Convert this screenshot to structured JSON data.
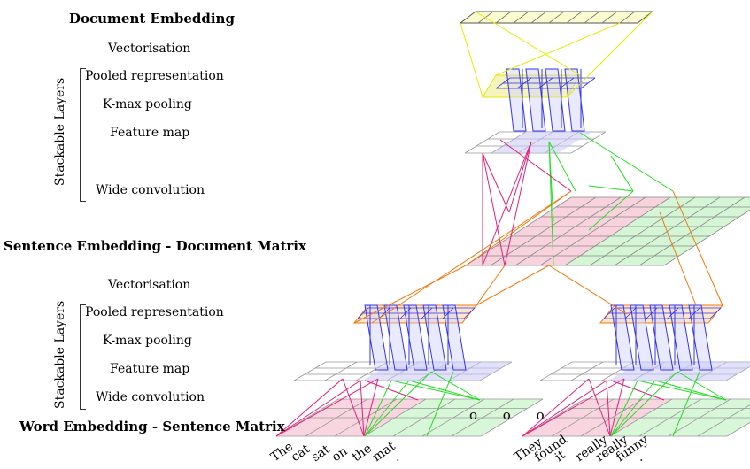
{
  "labels": {
    "doc_embedding": "Document Embedding",
    "vectorisation_top": "Vectorisation",
    "pooled_top": "Pooled representation",
    "kmax_top": "K-max pooling",
    "feature_top": "Feature map",
    "wideconv_top": "Wide convolution",
    "stackable_top": "Stackable Layers",
    "sent_embedding": "Sentence Embedding - Document Matrix",
    "vectorisation_bot": "Vectorisation",
    "pooled_bot": "Pooled representation",
    "kmax_bot": "K-max pooling",
    "feature_bot": "Feature map",
    "wideconv_bot": "Wide convolution",
    "stackable_bot": "Stackable Layers",
    "word_embedding": "Word Embedding - Sentence Matrix"
  },
  "sentence1": [
    "The",
    "cat",
    "sat",
    "on",
    "the",
    "mat",
    "."
  ],
  "sentence2": [
    "They",
    "found",
    "it",
    "really",
    "really",
    "funny",
    "."
  ],
  "ellipsis": "o o o",
  "colors": {
    "yellow": "#e8e800",
    "blue": "#3333ee",
    "pink": "#e0207a",
    "green": "#22dd22",
    "orange": "#f07a10",
    "grid": "#999999"
  }
}
